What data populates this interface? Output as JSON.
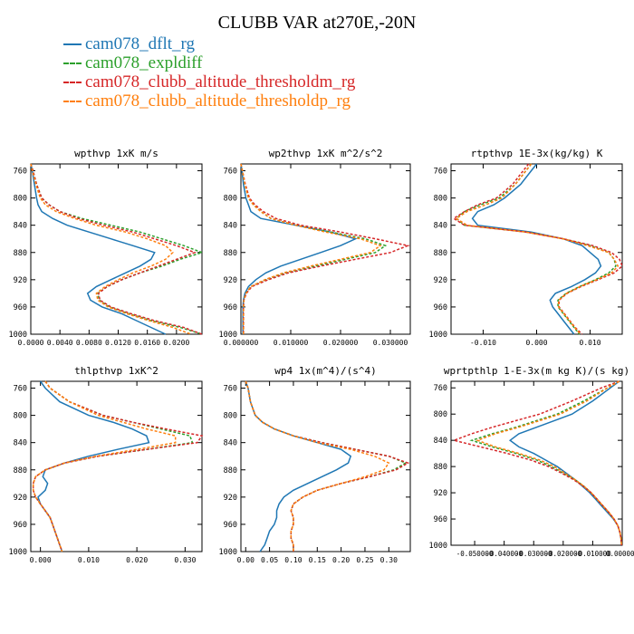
{
  "figure": {
    "title": "CLUBB VAR at270E,-20N",
    "legend": [
      {
        "name": "cam078_dflt_rg",
        "color": "#1f77b4",
        "dash": false
      },
      {
        "name": "cam078_expldiff",
        "color": "#2ca02c",
        "dash": true
      },
      {
        "name": "cam078_clubb_altitude_thresholdm_rg",
        "color": "#d62728",
        "dash": true
      },
      {
        "name": "cam078_clubb_altitude_thresholdp_rg",
        "color": "#ff7f0e",
        "dash": true
      }
    ]
  },
  "chart_data": [
    {
      "type": "line",
      "title": "wpthvp  1xK m/s",
      "xlim": [
        0.0,
        0.0235
      ],
      "ylim": [
        1000,
        750
      ],
      "xticks": [
        0.0,
        0.004,
        0.008,
        0.012,
        0.016,
        0.02
      ],
      "xticklabels": [
        "0.0000",
        "0.0040",
        "0.0080",
        "0.0120",
        "0.0160",
        "0.0200"
      ],
      "yticks": [
        760,
        800,
        840,
        880,
        920,
        960,
        1000
      ],
      "y": [
        750,
        760,
        780,
        800,
        810,
        820,
        830,
        840,
        850,
        860,
        870,
        880,
        890,
        900,
        910,
        920,
        930,
        940,
        950,
        960,
        970,
        980,
        990,
        1000
      ],
      "series": [
        {
          "name": "cam078_dflt_rg",
          "x": [
            0.0,
            0.0002,
            0.0005,
            0.0008,
            0.001,
            0.0015,
            0.003,
            0.005,
            0.008,
            0.011,
            0.014,
            0.017,
            0.0165,
            0.015,
            0.013,
            0.011,
            0.009,
            0.0078,
            0.0082,
            0.0098,
            0.0125,
            0.0145,
            0.0165,
            0.0185
          ]
        },
        {
          "name": "cam078_expldiff",
          "x": [
            0.0,
            0.0003,
            0.0008,
            0.0015,
            0.0025,
            0.004,
            0.007,
            0.011,
            0.015,
            0.018,
            0.021,
            0.0235,
            0.0205,
            0.018,
            0.015,
            0.0125,
            0.0105,
            0.0092,
            0.0094,
            0.0108,
            0.0135,
            0.0165,
            0.0205,
            0.0235
          ]
        },
        {
          "name": "cam078_clubb_altitude_thresholdm_rg",
          "x": [
            0.0,
            0.0003,
            0.0008,
            0.0015,
            0.0025,
            0.004,
            0.0065,
            0.01,
            0.014,
            0.017,
            0.02,
            0.0225,
            0.02,
            0.0175,
            0.015,
            0.0125,
            0.0105,
            0.0093,
            0.0095,
            0.011,
            0.0138,
            0.017,
            0.021,
            0.0235
          ]
        },
        {
          "name": "cam078_clubb_altitude_thresholdp_rg",
          "x": [
            0.0,
            0.0002,
            0.0007,
            0.0013,
            0.002,
            0.0035,
            0.006,
            0.009,
            0.013,
            0.016,
            0.0185,
            0.0195,
            0.0185,
            0.0165,
            0.014,
            0.012,
            0.0102,
            0.009,
            0.0092,
            0.0106,
            0.0132,
            0.0162,
            0.0195,
            0.022
          ]
        }
      ]
    },
    {
      "type": "line",
      "title": "wp2thvp  1xK m^2/s^2",
      "xlim": [
        0.0,
        0.034
      ],
      "ylim": [
        1000,
        750
      ],
      "xticks": [
        0.0,
        0.01,
        0.02,
        0.03
      ],
      "xticklabels": [
        "0.000000",
        "0.010000",
        "0.020000",
        "0.030000"
      ],
      "yticks": [
        760,
        800,
        840,
        880,
        920,
        960,
        1000
      ],
      "y": [
        750,
        760,
        780,
        800,
        810,
        820,
        830,
        840,
        850,
        860,
        870,
        880,
        890,
        900,
        910,
        920,
        930,
        940,
        950,
        960,
        970,
        980,
        990,
        1000
      ],
      "series": [
        {
          "name": "cam078_dflt_rg",
          "x": [
            0.0,
            0.0002,
            0.0005,
            0.001,
            0.0015,
            0.002,
            0.004,
            0.011,
            0.018,
            0.023,
            0.02,
            0.016,
            0.012,
            0.008,
            0.005,
            0.003,
            0.0015,
            0.0008,
            0.0005,
            0.0004,
            0.0004,
            0.0004,
            0.0004,
            0.0004
          ]
        },
        {
          "name": "cam078_expldiff",
          "x": [
            0.0,
            0.0003,
            0.0008,
            0.0015,
            0.0025,
            0.004,
            0.006,
            0.011,
            0.018,
            0.025,
            0.029,
            0.027,
            0.021,
            0.015,
            0.009,
            0.005,
            0.002,
            0.001,
            0.0006,
            0.0005,
            0.0005,
            0.0005,
            0.0005,
            0.0005
          ]
        },
        {
          "name": "cam078_clubb_altitude_thresholdm_rg",
          "x": [
            0.0,
            0.0003,
            0.0009,
            0.0017,
            0.0028,
            0.0045,
            0.007,
            0.012,
            0.02,
            0.027,
            0.0335,
            0.03,
            0.023,
            0.016,
            0.0095,
            0.0055,
            0.0022,
            0.0011,
            0.0006,
            0.0005,
            0.0005,
            0.0005,
            0.0005,
            0.0005
          ]
        },
        {
          "name": "cam078_clubb_altitude_thresholdp_rg",
          "x": [
            0.0,
            0.0003,
            0.0008,
            0.0015,
            0.0025,
            0.004,
            0.006,
            0.011,
            0.017,
            0.024,
            0.028,
            0.026,
            0.02,
            0.014,
            0.0085,
            0.0048,
            0.002,
            0.001,
            0.0006,
            0.0005,
            0.0005,
            0.0005,
            0.0005,
            0.0005
          ]
        }
      ]
    },
    {
      "type": "line",
      "title": "rtpthvp  1E-3x(kg/kg) K",
      "xlim": [
        -0.016,
        0.016
      ],
      "ylim": [
        1000,
        750
      ],
      "xticks": [
        -0.01,
        0.0,
        0.01
      ],
      "xticklabels": [
        "-0.010",
        "0.000",
        "0.010"
      ],
      "yticks": [
        760,
        800,
        840,
        880,
        920,
        960,
        1000
      ],
      "y": [
        750,
        760,
        780,
        800,
        810,
        820,
        830,
        840,
        850,
        860,
        870,
        880,
        890,
        900,
        910,
        920,
        930,
        940,
        950,
        960,
        970,
        980,
        990,
        1000
      ],
      "series": [
        {
          "name": "cam078_dflt_rg",
          "x": [
            0.0,
            -0.001,
            -0.003,
            -0.006,
            -0.008,
            -0.011,
            -0.012,
            -0.011,
            -0.001,
            0.005,
            0.0085,
            0.01,
            0.0115,
            0.012,
            0.011,
            0.009,
            0.0065,
            0.0035,
            0.0025,
            0.003,
            0.004,
            0.005,
            0.006,
            0.007
          ]
        },
        {
          "name": "cam078_expldiff",
          "x": [
            -0.001,
            -0.002,
            -0.004,
            -0.007,
            -0.0105,
            -0.0135,
            -0.015,
            -0.0135,
            -0.002,
            0.005,
            0.01,
            0.0135,
            0.0145,
            0.0148,
            0.0135,
            0.011,
            0.008,
            0.0055,
            0.004,
            0.004,
            0.005,
            0.006,
            0.007,
            0.008
          ]
        },
        {
          "name": "cam078_clubb_altitude_thresholdm_rg",
          "x": [
            -0.0015,
            -0.0025,
            -0.0045,
            -0.0075,
            -0.011,
            -0.0135,
            -0.0155,
            -0.0135,
            -0.002,
            0.005,
            0.0105,
            0.014,
            0.0155,
            0.016,
            0.0145,
            0.0115,
            0.0083,
            0.0057,
            0.0042,
            0.0042,
            0.0052,
            0.0062,
            0.0072,
            0.0085
          ]
        },
        {
          "name": "cam078_clubb_altitude_thresholdp_rg",
          "x": [
            -0.001,
            -0.002,
            -0.004,
            -0.0065,
            -0.0095,
            -0.013,
            -0.015,
            -0.013,
            -0.002,
            0.005,
            0.0095,
            0.0135,
            0.0145,
            0.0152,
            0.014,
            0.0112,
            0.0081,
            0.0056,
            0.0041,
            0.0041,
            0.0051,
            0.0061,
            0.0071,
            0.0082
          ]
        }
      ]
    },
    {
      "type": "line",
      "title": "thlpthvp  1xK^2",
      "xlim": [
        -0.002,
        0.0335
      ],
      "ylim": [
        1000,
        750
      ],
      "xticks": [
        0.0,
        0.01,
        0.02,
        0.03
      ],
      "xticklabels": [
        "0.000",
        "0.010",
        "0.020",
        "0.030"
      ],
      "yticks": [
        760,
        800,
        840,
        880,
        920,
        960,
        1000
      ],
      "y": [
        750,
        760,
        780,
        800,
        810,
        820,
        830,
        840,
        850,
        860,
        870,
        880,
        890,
        900,
        910,
        920,
        930,
        940,
        950,
        960,
        970,
        980,
        990,
        1000
      ],
      "series": [
        {
          "name": "cam078_dflt_rg",
          "x": [
            0.0,
            0.001,
            0.004,
            0.01,
            0.015,
            0.019,
            0.022,
            0.0225,
            0.016,
            0.01,
            0.005,
            0.001,
            0.0005,
            0.0015,
            0.001,
            -0.0005,
            0.0,
            0.001,
            0.002,
            0.0025,
            0.003,
            0.0035,
            0.004,
            0.0045
          ]
        },
        {
          "name": "cam078_expldiff",
          "x": [
            0.001,
            0.002,
            0.006,
            0.013,
            0.019,
            0.025,
            0.031,
            0.0315,
            0.022,
            0.012,
            0.005,
            0.001,
            -0.001,
            -0.0015,
            -0.0015,
            -0.001,
            0.0,
            0.001,
            0.002,
            0.0025,
            0.003,
            0.0035,
            0.004,
            0.0045
          ]
        },
        {
          "name": "cam078_clubb_altitude_thresholdm_rg",
          "x": [
            0.001,
            0.002,
            0.006,
            0.013,
            0.019,
            0.026,
            0.0335,
            0.0325,
            0.022,
            0.012,
            0.005,
            0.001,
            -0.001,
            -0.0015,
            -0.0015,
            -0.001,
            0.0,
            0.001,
            0.002,
            0.0025,
            0.003,
            0.0035,
            0.004,
            0.0045
          ]
        },
        {
          "name": "cam078_clubb_altitude_thresholdp_rg",
          "x": [
            0.001,
            0.002,
            0.006,
            0.012,
            0.017,
            0.022,
            0.028,
            0.028,
            0.02,
            0.0115,
            0.005,
            0.001,
            -0.001,
            -0.0015,
            -0.0015,
            -0.001,
            0.0,
            0.001,
            0.002,
            0.0025,
            0.003,
            0.0035,
            0.004,
            0.0045
          ]
        }
      ]
    },
    {
      "type": "line",
      "title": "wp4  1x(m^4)/(s^4)",
      "xlim": [
        -0.01,
        0.345
      ],
      "ylim": [
        1000,
        750
      ],
      "xticks": [
        0.0,
        0.05,
        0.1,
        0.15,
        0.2,
        0.25,
        0.3
      ],
      "xticklabels": [
        "0.00",
        "0.05",
        "0.10",
        "0.15",
        "0.20",
        "0.25",
        "0.30"
      ],
      "yticks": [
        760,
        800,
        840,
        880,
        920,
        960,
        1000
      ],
      "y": [
        750,
        760,
        780,
        800,
        810,
        820,
        830,
        840,
        850,
        860,
        870,
        880,
        890,
        900,
        910,
        920,
        930,
        940,
        950,
        960,
        970,
        980,
        990,
        1000
      ],
      "series": [
        {
          "name": "cam078_dflt_rg",
          "x": [
            0.0,
            0.005,
            0.01,
            0.02,
            0.035,
            0.06,
            0.1,
            0.15,
            0.2,
            0.22,
            0.215,
            0.19,
            0.16,
            0.13,
            0.1,
            0.08,
            0.07,
            0.065,
            0.065,
            0.06,
            0.05,
            0.045,
            0.04,
            0.03
          ]
        },
        {
          "name": "cam078_expldiff",
          "x": [
            0.0,
            0.005,
            0.01,
            0.02,
            0.035,
            0.06,
            0.1,
            0.16,
            0.23,
            0.3,
            0.335,
            0.31,
            0.26,
            0.2,
            0.15,
            0.12,
            0.1,
            0.095,
            0.1,
            0.1,
            0.095,
            0.095,
            0.1,
            0.1
          ]
        },
        {
          "name": "cam078_clubb_altitude_thresholdm_rg",
          "x": [
            0.0,
            0.005,
            0.01,
            0.02,
            0.035,
            0.06,
            0.1,
            0.16,
            0.23,
            0.3,
            0.34,
            0.315,
            0.26,
            0.2,
            0.15,
            0.12,
            0.1,
            0.095,
            0.1,
            0.1,
            0.095,
            0.095,
            0.1,
            0.1
          ]
        },
        {
          "name": "cam078_clubb_altitude_thresholdp_rg",
          "x": [
            0.0,
            0.005,
            0.01,
            0.02,
            0.035,
            0.06,
            0.1,
            0.15,
            0.22,
            0.27,
            0.3,
            0.29,
            0.25,
            0.2,
            0.15,
            0.12,
            0.1,
            0.095,
            0.1,
            0.1,
            0.095,
            0.095,
            0.1,
            0.1
          ]
        }
      ]
    },
    {
      "type": "line",
      "title": "wprtpthlp  1-E-3x(m kg K)/(s kg)",
      "xlim": [
        -0.058,
        0.0
      ],
      "ylim": [
        1000,
        750
      ],
      "xticks": [
        -0.05,
        -0.04,
        -0.03,
        -0.02,
        -0.01,
        0.0
      ],
      "xticklabels": [
        "-0.050000",
        "-0.040000",
        "-0.030000",
        "-0.020000",
        "-0.010000",
        "0.000000"
      ],
      "yticks": [
        760,
        800,
        840,
        880,
        920,
        960,
        1000
      ],
      "y": [
        750,
        760,
        780,
        800,
        810,
        820,
        830,
        840,
        850,
        860,
        870,
        880,
        890,
        900,
        910,
        920,
        930,
        940,
        950,
        960,
        970,
        980,
        990,
        1000
      ],
      "series": [
        {
          "name": "cam078_dflt_rg",
          "x": [
            -0.001,
            -0.004,
            -0.01,
            -0.017,
            -0.023,
            -0.029,
            -0.035,
            -0.038,
            -0.035,
            -0.03,
            -0.026,
            -0.022,
            -0.019,
            -0.016,
            -0.0135,
            -0.011,
            -0.009,
            -0.007,
            -0.005,
            -0.003,
            -0.0015,
            -0.0008,
            -0.0004,
            -0.0002
          ]
        },
        {
          "name": "cam078_expldiff",
          "x": [
            -0.001,
            -0.005,
            -0.013,
            -0.022,
            -0.029,
            -0.036,
            -0.044,
            -0.051,
            -0.044,
            -0.036,
            -0.029,
            -0.024,
            -0.02,
            -0.016,
            -0.013,
            -0.0105,
            -0.0085,
            -0.0065,
            -0.0045,
            -0.0028,
            -0.0015,
            -0.0008,
            -0.0004,
            -0.0002
          ]
        },
        {
          "name": "cam078_clubb_altitude_thresholdm_rg",
          "x": [
            -0.001,
            -0.007,
            -0.017,
            -0.028,
            -0.036,
            -0.044,
            -0.051,
            -0.057,
            -0.048,
            -0.039,
            -0.031,
            -0.025,
            -0.0205,
            -0.0165,
            -0.0132,
            -0.0105,
            -0.0085,
            -0.0065,
            -0.0045,
            -0.0028,
            -0.0015,
            -0.0008,
            -0.0004,
            -0.0002
          ]
        },
        {
          "name": "cam078_clubb_altitude_thresholdp_rg",
          "x": [
            -0.001,
            -0.005,
            -0.012,
            -0.021,
            -0.028,
            -0.035,
            -0.043,
            -0.049,
            -0.043,
            -0.035,
            -0.028,
            -0.023,
            -0.0195,
            -0.016,
            -0.013,
            -0.0105,
            -0.0085,
            -0.0065,
            -0.0045,
            -0.0028,
            -0.0015,
            -0.0008,
            -0.0004,
            -0.0002
          ]
        }
      ]
    }
  ]
}
